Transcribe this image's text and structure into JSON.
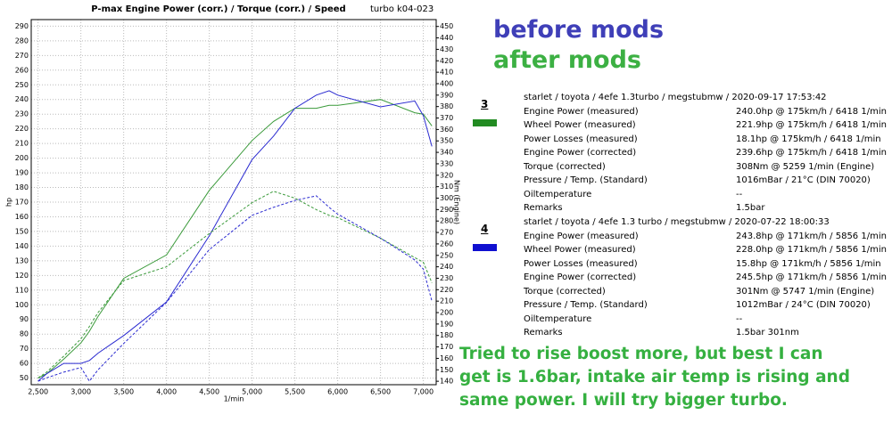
{
  "chart_data": {
    "type": "line",
    "title": "P-max Engine Power (corr.) / Torque (corr.) / Speed",
    "subtitle": "turbo k04-023",
    "xlabel": "1/min",
    "ylabel": "hp",
    "y2label": "Nm (Engine)",
    "x": [
      2500,
      2600,
      2800,
      3000,
      3100,
      3200,
      3500,
      4000,
      4500,
      5000,
      5250,
      5500,
      5750,
      5900,
      6000,
      6500,
      6900,
      7000,
      7100
    ],
    "series": [
      {
        "name": "3",
        "color": "#3a9a3a",
        "dash": false,
        "values": [
          50,
          53,
          63,
          74,
          82,
          92,
          118,
          134,
          178,
          212,
          225,
          234,
          234,
          236,
          236,
          240,
          231,
          230,
          222
        ]
      },
      {
        "name": "4",
        "color": "#2a2ad0",
        "dash": false,
        "values": [
          48,
          53,
          60,
          60,
          62,
          67,
          79,
          102,
          147,
          199,
          215,
          234,
          243,
          246,
          243,
          235,
          239,
          229,
          208
        ]
      },
      {
        "color": "#3a9a3a",
        "dash": true,
        "axis": "y2",
        "values": [
          143,
          148,
          162,
          177,
          188,
          200,
          228,
          240,
          269,
          296,
          306,
          300,
          290,
          285,
          283,
          265,
          248,
          244,
          226
        ]
      },
      {
        "color": "#2a2ad0",
        "dash": true,
        "axis": "y2",
        "values": [
          140,
          143,
          148,
          152,
          140,
          150,
          173,
          209,
          255,
          285,
          292,
          298,
          302,
          292,
          286,
          265,
          246,
          238,
          210
        ]
      }
    ],
    "xlim": [
      2420,
      7150
    ],
    "xticks": [
      {
        "value": 2500,
        "label": "2,500"
      },
      {
        "value": 3000,
        "label": "3,000"
      },
      {
        "value": 3500,
        "label": "3,500"
      },
      {
        "value": 4000,
        "label": "4,000"
      },
      {
        "value": 4500,
        "label": "4,500"
      },
      {
        "value": 5000,
        "label": "5,000"
      },
      {
        "value": 5500,
        "label": "5,500"
      },
      {
        "value": 6000,
        "label": "6,000"
      },
      {
        "value": 6500,
        "label": "6,500"
      },
      {
        "value": 7000,
        "label": "7,000"
      }
    ],
    "ylim": [
      45.5,
      294.5
    ],
    "yticks": [
      50,
      60,
      70,
      80,
      90,
      100,
      110,
      120,
      130,
      140,
      150,
      160,
      170,
      180,
      190,
      200,
      210,
      220,
      230,
      240,
      250,
      260,
      270,
      280,
      290
    ],
    "y2lim": [
      137,
      456
    ],
    "y2ticks": [
      140,
      150,
      160,
      170,
      180,
      190,
      200,
      210,
      220,
      230,
      240,
      250,
      260,
      270,
      280,
      290,
      300,
      310,
      320,
      330,
      340,
      350,
      360,
      370,
      380,
      390,
      400,
      410,
      420,
      430,
      440,
      450
    ],
    "grid": true
  },
  "headline": {
    "before": "before mods",
    "before_color": "#3f3fb8",
    "after": "after mods",
    "after_color": "#3cb043"
  },
  "runs": [
    {
      "number": "3",
      "color": "#228b22",
      "header": "starlet / toyota / 4efe 1.3turbo / megstubmw / 2020-09-17 17:53:42",
      "rows": [
        [
          "Engine Power (measured)",
          "240.0hp @ 175km/h / 6418 1/min"
        ],
        [
          "Wheel Power (measured)",
          "221.9hp @ 175km/h / 6418 1/min"
        ],
        [
          "Power Losses (measured)",
          "18.1hp @ 175km/h / 6418 1/min"
        ],
        [
          "Engine Power (corrected)",
          "239.6hp @ 175km/h / 6418 1/min"
        ],
        [
          "Torque (corrected)",
          "308Nm @ 5259 1/min (Engine)"
        ],
        [
          "Pressure / Temp. (Standard)",
          "1016mBar / 21°C  (DIN 70020)"
        ],
        [
          "Oiltemperature",
          "--"
        ],
        [
          "Remarks",
          "1.5bar"
        ]
      ]
    },
    {
      "number": "4",
      "color": "#1010d0",
      "header": "starlet / toyota / 4efe 1.3 turbo / megstubmw / 2020-07-22 18:00:33",
      "rows": [
        [
          "Engine Power (measured)",
          "243.8hp @ 171km/h / 5856 1/min"
        ],
        [
          "Wheel Power (measured)",
          "228.0hp @ 171km/h / 5856 1/min"
        ],
        [
          "Power Losses (measured)",
          "15.8hp @ 171km/h / 5856 1/min"
        ],
        [
          "Engine Power (corrected)",
          "245.5hp @ 171km/h / 5856 1/min"
        ],
        [
          "Torque (corrected)",
          "301Nm @ 5747 1/min (Engine)"
        ],
        [
          "Pressure / Temp. (Standard)",
          "1012mBar / 24°C  (DIN 70020)"
        ],
        [
          "Oiltemperature",
          "--"
        ],
        [
          "Remarks",
          "1.5bar 301nm"
        ]
      ]
    }
  ],
  "comment": [
    "Tried to rise boost more, but best I can",
    "get is 1.6bar, intake air temp is rising and",
    "same power. I will try bigger turbo."
  ]
}
